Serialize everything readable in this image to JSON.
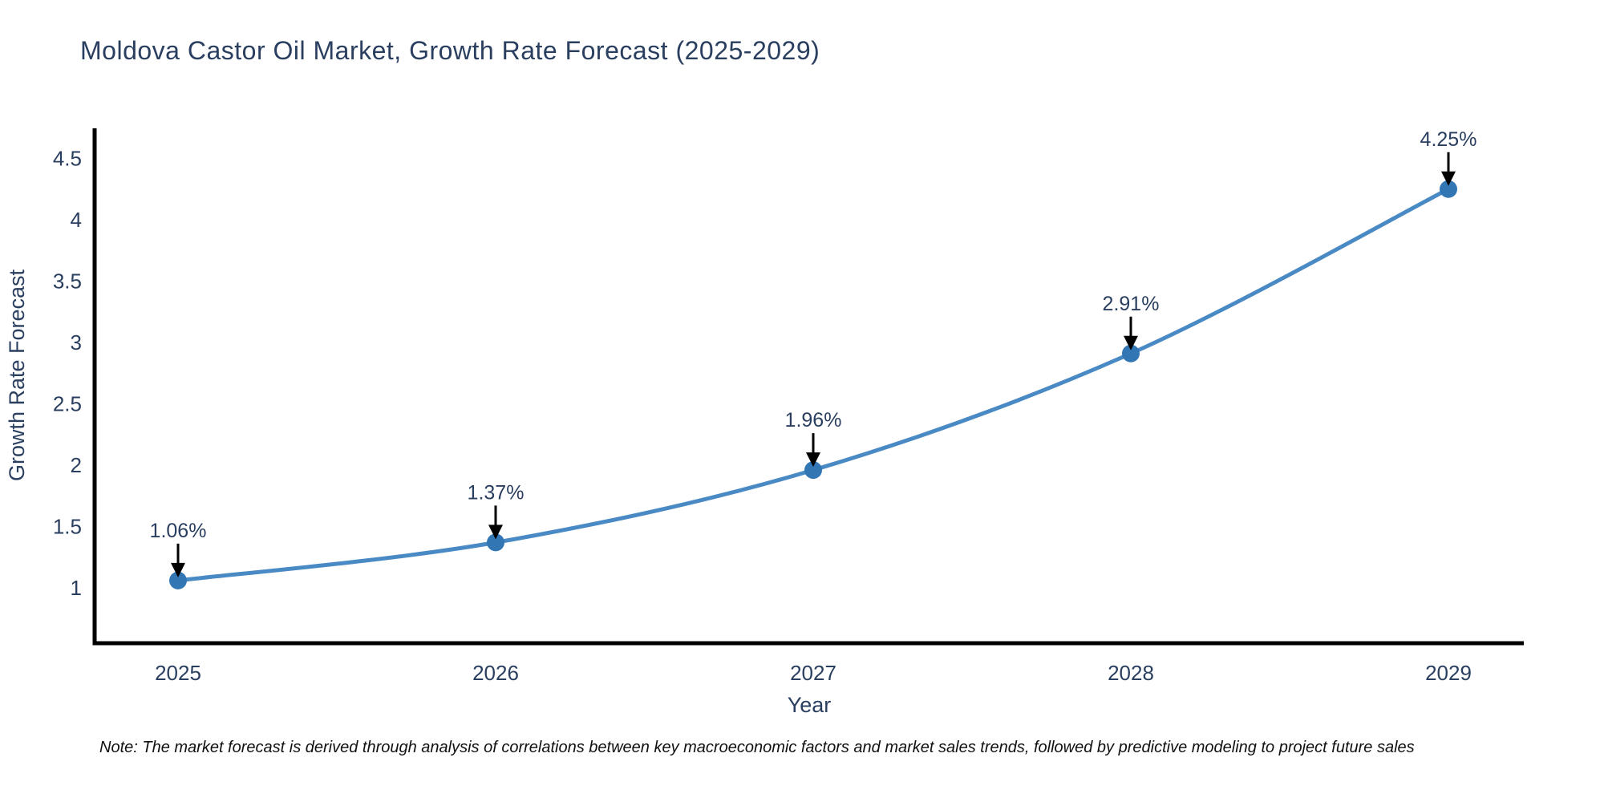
{
  "title": "Moldova Castor Oil Market, Growth Rate Forecast (2025-2029)",
  "note": "Note: The market forecast is derived through analysis of correlations between key macroeconomic factors and market sales trends, followed by predictive modeling to project future sales",
  "chart_data": {
    "type": "line",
    "title": "Moldova Castor Oil Market, Growth Rate Forecast (2025-2029)",
    "xlabel": "Year",
    "ylabel": "Growth Rate Forecast",
    "x": [
      2025,
      2026,
      2027,
      2028,
      2029
    ],
    "series": [
      {
        "name": "Growth Rate Forecast",
        "values": [
          1.06,
          1.37,
          1.96,
          2.91,
          4.25
        ]
      }
    ],
    "point_labels": [
      "1.06%",
      "1.37%",
      "1.96%",
      "2.91%",
      "4.25%"
    ],
    "yticks": [
      1,
      1.5,
      2,
      2.5,
      3,
      3.5,
      4,
      4.5
    ],
    "xticks": [
      "2025",
      "2026",
      "2027",
      "2028",
      "2029"
    ],
    "ylim": [
      0.55,
      4.75
    ],
    "grid": false,
    "legend": "none",
    "line_style": "smooth-spline",
    "marker": "circle",
    "annotations": "value labels with black arrows pointing down to each marker",
    "colors": {
      "line": "#4a8ac4",
      "marker": "#3276b4",
      "axis": "#000000",
      "text": "#2a3f5f",
      "arrow": "#000000",
      "note_text": "#111111",
      "background": "#ffffff"
    }
  }
}
